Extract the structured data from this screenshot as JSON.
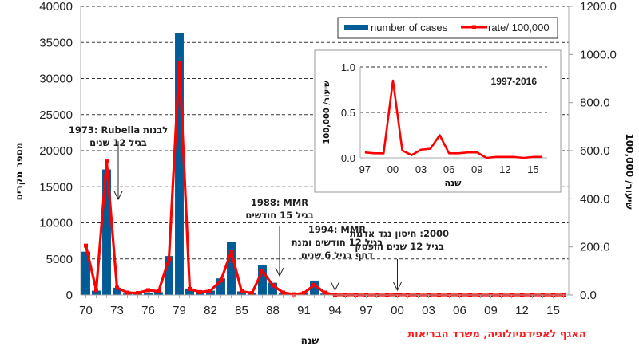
{
  "chart_data": {
    "type": "bar+line",
    "title": "",
    "xlabel": "שנה",
    "ylabel_left": "מספר מקרים",
    "ylabel_right": "שיעור/ 100,000",
    "ylim_left": [
      0,
      40000
    ],
    "ylim_right": [
      0,
      1200
    ],
    "yticks_left": [
      "0",
      "5000",
      "10000",
      "15000",
      "20000",
      "25000",
      "30000",
      "35000",
      "40000"
    ],
    "yticks_right": [
      "0.0",
      "200.0",
      "400.0",
      "600.0",
      "800.0",
      "1000.0",
      "1200.0"
    ],
    "grid": "horizontal-dashed",
    "legend_position": "top-right",
    "x_tick_labels": [
      "70",
      "73",
      "76",
      "79",
      "82",
      "85",
      "88",
      "91",
      "94",
      "97",
      "00",
      "03",
      "06",
      "09",
      "12",
      "15"
    ],
    "years": [
      1970,
      1971,
      1972,
      1973,
      1974,
      1975,
      1976,
      1977,
      1978,
      1979,
      1980,
      1981,
      1982,
      1983,
      1984,
      1985,
      1986,
      1987,
      1988,
      1989,
      1990,
      1991,
      1992,
      1993,
      1994,
      1995,
      1996,
      1997,
      1998,
      1999,
      2000,
      2001,
      2002,
      2003,
      2004,
      2005,
      2006,
      2007,
      2008,
      2009,
      2010,
      2011,
      2012,
      2013,
      2014,
      2015,
      2016
    ],
    "series": [
      {
        "name": "number of cases",
        "type": "bar",
        "axis": "left",
        "color": "#005b96",
        "values": [
          6000,
          600,
          17400,
          1000,
          200,
          200,
          300,
          400,
          5400,
          36300,
          900,
          500,
          600,
          2300,
          7300,
          500,
          300,
          4200,
          1700,
          300,
          100,
          300,
          2000,
          200,
          20,
          15,
          12,
          15,
          12,
          12,
          300,
          25,
          10,
          30,
          35,
          80,
          15,
          15,
          20,
          20,
          2,
          4,
          4,
          4,
          2,
          4,
          4
        ]
      },
      {
        "name": "rate/ 100,000",
        "type": "line",
        "axis": "right",
        "color": "#ff0000",
        "values": [
          205,
          20,
          555,
          30,
          10,
          8,
          20,
          15,
          150,
          965,
          25,
          12,
          18,
          60,
          180,
          15,
          8,
          100,
          40,
          10,
          3,
          8,
          42,
          10,
          0.5,
          0.5,
          0.5,
          0.06,
          0.05,
          0.05,
          0.85,
          0.08,
          0.03,
          0.09,
          0.1,
          0.25,
          0.05,
          0.05,
          0.06,
          0.06,
          0.0,
          0.01,
          0.01,
          0.01,
          0.0,
          0.01,
          0.01
        ]
      }
    ],
    "inset": {
      "title": "1997-2016",
      "xlabel": "שנה",
      "ylabel": "שיעור/ 100,000",
      "ylim": [
        0,
        1.0
      ],
      "yticks": [
        "0.0",
        "0.5",
        "1.0"
      ],
      "x_tick_labels": [
        "97",
        "00",
        "03",
        "06",
        "09",
        "12",
        "15"
      ],
      "years": [
        1997,
        1998,
        1999,
        2000,
        2001,
        2002,
        2003,
        2004,
        2005,
        2006,
        2007,
        2008,
        2009,
        2010,
        2011,
        2012,
        2013,
        2014,
        2015,
        2016
      ],
      "values": [
        0.06,
        0.05,
        0.05,
        0.85,
        0.08,
        0.03,
        0.09,
        0.1,
        0.25,
        0.05,
        0.05,
        0.06,
        0.06,
        0.0,
        0.01,
        0.01,
        0.01,
        0.0,
        0.01,
        0.01
      ],
      "color": "#ff0000"
    },
    "annotations": [
      {
        "year": 1973,
        "lines": [
          "1973: Rubella לבנות",
          "בגיל 12 שנים"
        ]
      },
      {
        "year": 1988,
        "lines": [
          "1988: MMR",
          "בגיל 15 חודשים"
        ]
      },
      {
        "year": 1994,
        "lines": [
          "1994: MMR",
          "בגיל 12 חודשים ומנת",
          "דחף בגיל 6 שנים"
        ]
      },
      {
        "year": 2000,
        "lines": [
          "2000: חיסון נגד אדמת",
          "בגיל 12 שנים הופסק"
        ]
      }
    ],
    "legend": [
      "number of cases",
      "rate/ 100,000"
    ],
    "source": "האגף לאפידמיולוגיה, משרד הבריאות"
  }
}
